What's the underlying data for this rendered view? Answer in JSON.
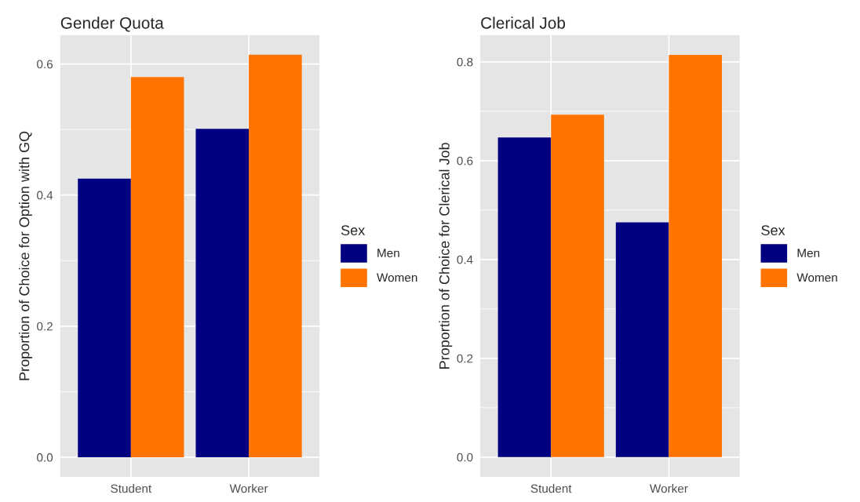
{
  "chart_data": [
    {
      "type": "bar",
      "title": "Gender Quota",
      "ylabel": "Proportion of Choice for Option with GQ",
      "categories": [
        "Student",
        "Worker"
      ],
      "legend_title": "Sex",
      "legend": "right",
      "grid": true,
      "ylim": [
        -0.03,
        0.644
      ],
      "yticks": [
        {
          "value": 0,
          "label": "0.0"
        },
        0.2,
        0.4,
        0.6
      ],
      "series": [
        {
          "name": "Men",
          "color": "#000080",
          "values": [
            0.425,
            0.501
          ]
        },
        {
          "name": "Women",
          "color": "#ff7300",
          "values": [
            0.58,
            0.614
          ]
        }
      ]
    },
    {
      "type": "bar",
      "title": "Clerical Job",
      "ylabel": "Proportion of Choice for Clerical Job",
      "categories": [
        "Student",
        "Worker"
      ],
      "legend_title": "Sex",
      "legend": "right",
      "grid": true,
      "ylim": [
        -0.04,
        0.854
      ],
      "yticks": [
        {
          "value": 0,
          "label": "0.0"
        },
        0.2,
        0.4,
        0.6,
        0.8
      ],
      "series": [
        {
          "name": "Men",
          "color": "#000080",
          "values": [
            0.647,
            0.475
          ]
        },
        {
          "name": "Women",
          "color": "#ff7300",
          "values": [
            0.693,
            0.814
          ]
        }
      ]
    }
  ]
}
